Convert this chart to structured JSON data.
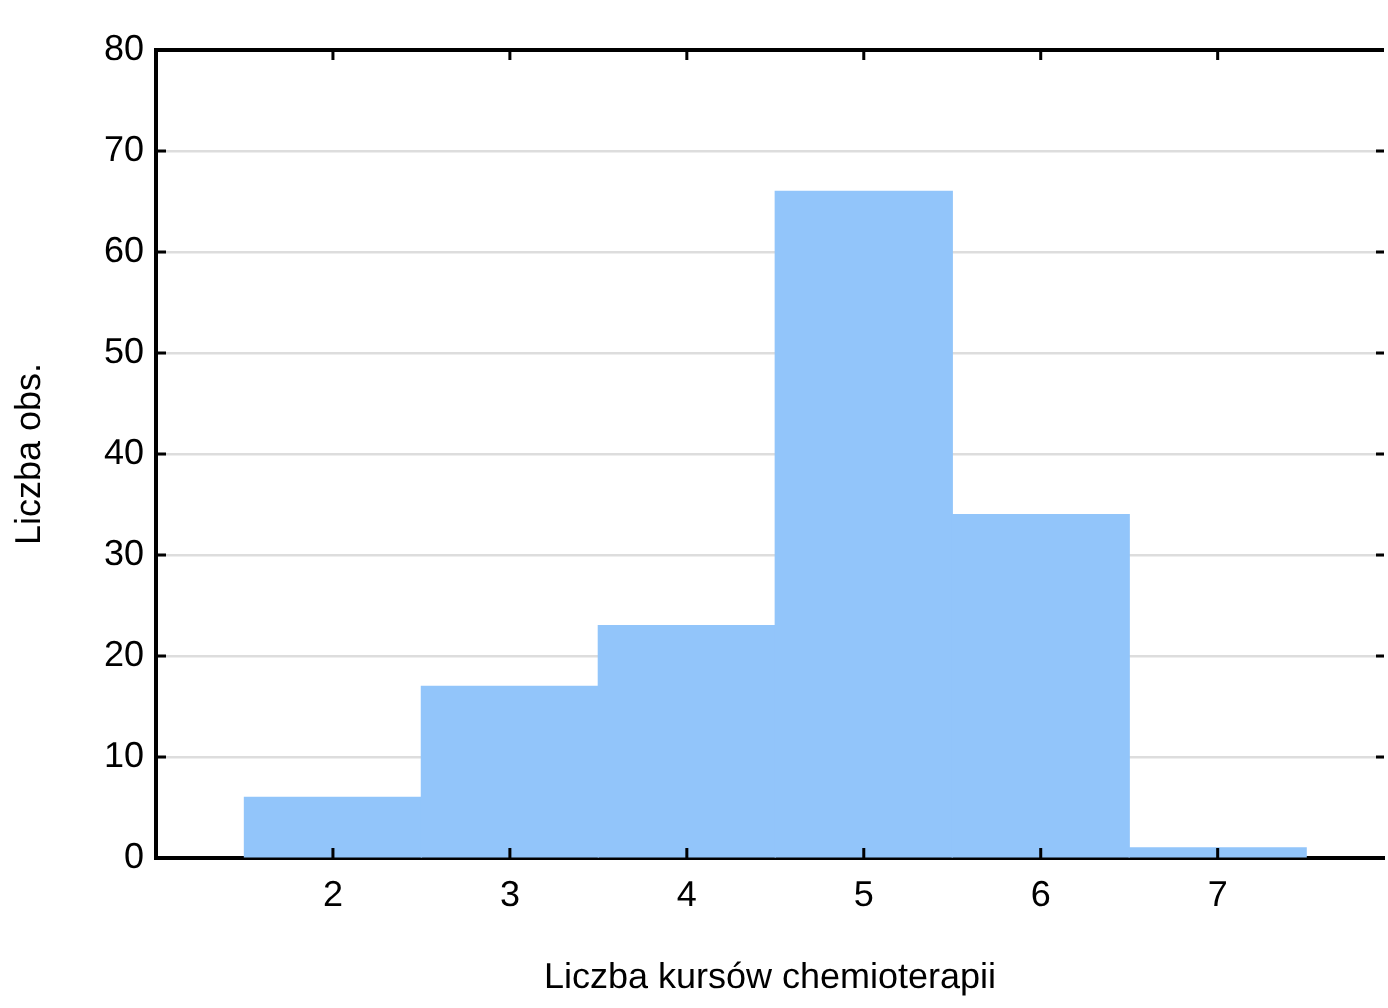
{
  "chart_data": {
    "type": "histogram",
    "xlabel": "Liczba kursów chemioterapii",
    "ylabel": "Liczba obs.",
    "bins": [
      1.5,
      2.5,
      3.5,
      4.5,
      5.5,
      6.5,
      7.5
    ],
    "values": [
      6,
      17,
      23,
      66,
      34,
      1
    ],
    "color": "#92c5fa",
    "xlim": [
      1,
      7.94
    ],
    "xticks": [
      2,
      3,
      4,
      5,
      6,
      7
    ],
    "ylim": [
      0,
      80
    ],
    "yticks": [
      0,
      10,
      20,
      30,
      40,
      50,
      60,
      70,
      80
    ],
    "grid": "y",
    "legend": false
  }
}
